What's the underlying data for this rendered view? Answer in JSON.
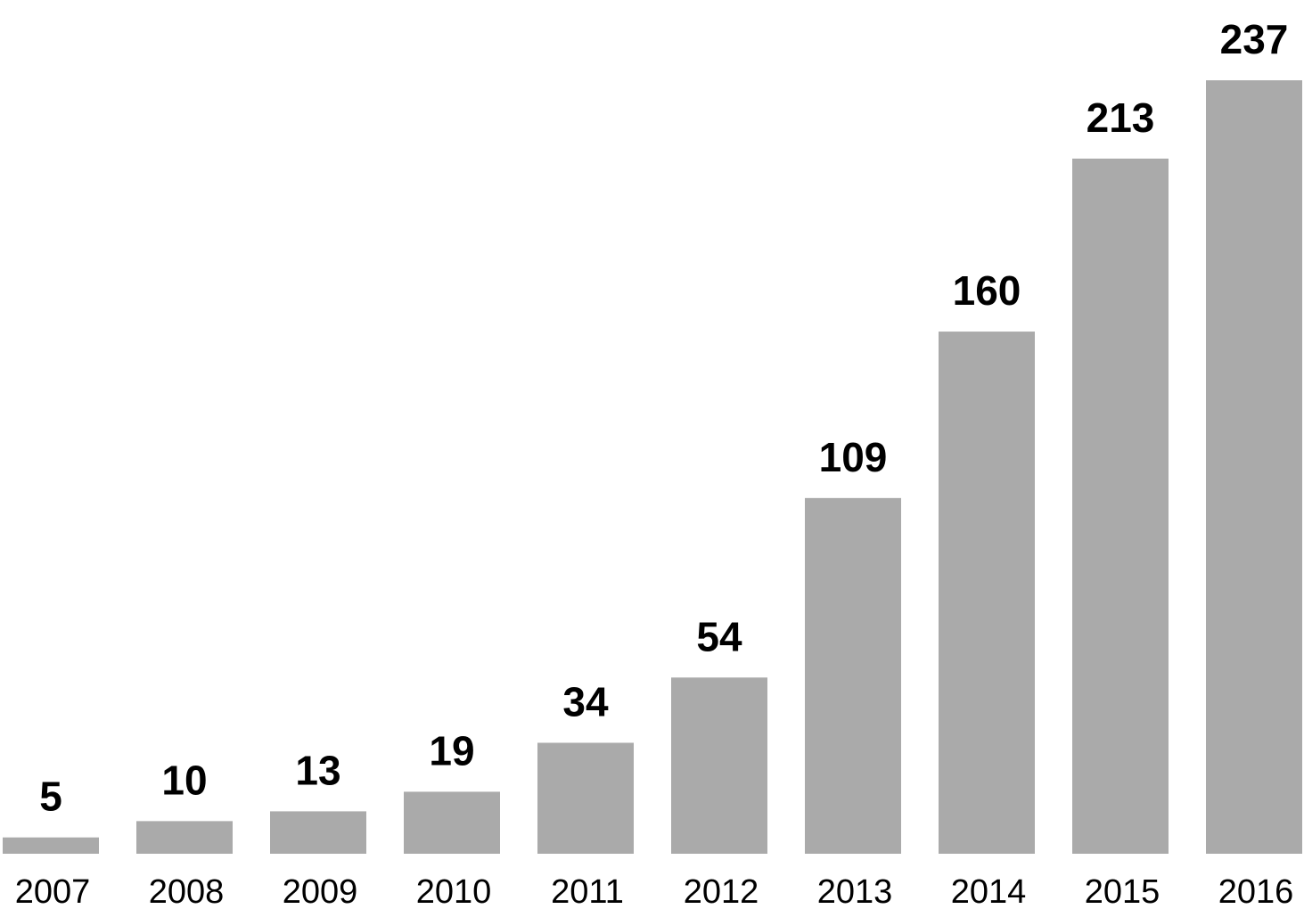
{
  "chart_data": {
    "type": "bar",
    "title": "",
    "xlabel": "",
    "ylabel": "",
    "categories": [
      "2007",
      "2008",
      "2009",
      "2010",
      "2011",
      "2012",
      "2013",
      "2014",
      "2015",
      "2016"
    ],
    "values": [
      5,
      10,
      13,
      19,
      34,
      54,
      109,
      160,
      213,
      237
    ],
    "value_labels": [
      "5",
      "10",
      "13",
      "19",
      "34",
      "54",
      "109",
      "160",
      "213",
      "237"
    ],
    "ylim": [
      0,
      240
    ],
    "grid": false,
    "legend": "none",
    "colors": {
      "bar": "#aaaaaa",
      "text": "#000000"
    }
  }
}
